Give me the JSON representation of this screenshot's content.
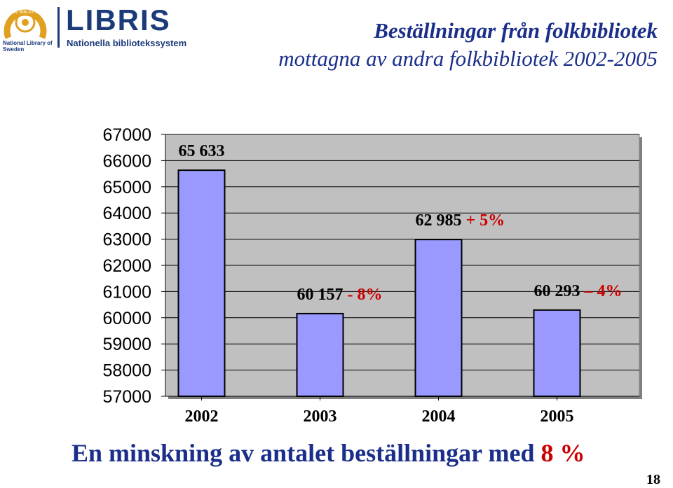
{
  "logo": {
    "seal_text": "KUNGL BIBLIOTEKET",
    "kb_name": "National Library of Sweden",
    "libris_name": "LIBRIS",
    "libris_sub": "Nationella bibliotekssystem"
  },
  "title_line1": "Beställningar från folkbibliotek",
  "title_line2": "mottagna av andra folkbibliotek 2002-2005",
  "chart_data": {
    "type": "bar",
    "categories": [
      "2002",
      "2003",
      "2004",
      "2005"
    ],
    "values": [
      65633,
      60157,
      62985,
      60293
    ],
    "value_labels": [
      "65 633",
      "60 157",
      "62 985",
      "60 293"
    ],
    "change_labels": [
      "",
      "- 8%",
      "+ 5%",
      "– 4%"
    ],
    "ylim": [
      57000,
      67000
    ],
    "yticks": [
      "67000",
      "66000",
      "65000",
      "64000",
      "63000",
      "62000",
      "61000",
      "60000",
      "59000",
      "58000",
      "57000"
    ],
    "grid": true,
    "bar_color": "#9999ff",
    "plot_bg": "#c0c0c0",
    "change_color": "#cc0000"
  },
  "footer_text": "En minskning av antalet beställningar med ",
  "footer_pct": "8 %",
  "page_number": "18"
}
